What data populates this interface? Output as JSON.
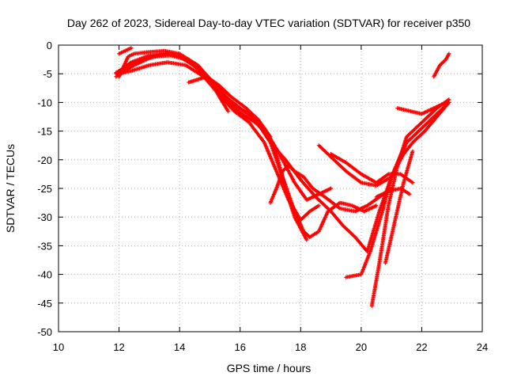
{
  "chart_data": {
    "type": "scatter",
    "title": "Day 262 of 2023, Sidereal Day-to-day VTEC variation (SDTVAR) for receiver p350",
    "xlabel": "GPS time / hours",
    "ylabel": "SDTVAR / TECUs",
    "xlim": [
      10,
      24
    ],
    "ylim": [
      -50,
      0
    ],
    "xticks": [
      10,
      12,
      14,
      16,
      18,
      20,
      22,
      24
    ],
    "yticks": [
      0,
      -5,
      -10,
      -15,
      -20,
      -25,
      -30,
      -35,
      -40,
      -45,
      -50
    ],
    "grid": true,
    "legend": "none",
    "marker": "plus",
    "color": "#ff0000",
    "series": [
      {
        "x": [
          11.9,
          12.4,
          13.0,
          13.5,
          14.0,
          14.6,
          15.2,
          15.8,
          16.3,
          16.8,
          17.3,
          17.8,
          18.2,
          18.6,
          19.0
        ],
        "y": [
          -5.0,
          -3.0,
          -1.8,
          -1.5,
          -1.8,
          -3.5,
          -7.0,
          -10.5,
          -12.0,
          -14.5,
          -19.0,
          -24.0,
          -27.0,
          -26.0,
          -25.0
        ]
      },
      {
        "x": [
          11.9,
          12.5,
          13.1,
          13.6,
          14.0,
          14.6,
          15.2,
          15.8,
          16.3,
          16.8,
          17.2,
          17.6,
          18.0,
          18.3,
          18.6
        ],
        "y": [
          -5.5,
          -3.5,
          -2.0,
          -1.5,
          -2.0,
          -4.0,
          -8.0,
          -11.5,
          -13.5,
          -17.0,
          -22.0,
          -27.0,
          -30.5,
          -29.0,
          -28.0
        ]
      },
      {
        "x": [
          11.9,
          12.5,
          13.2,
          13.7,
          14.2,
          14.8,
          15.4,
          16.0,
          16.5,
          17.0,
          17.4,
          17.8,
          18.1,
          18.3,
          18.6,
          18.9,
          19.3,
          19.7,
          20.1,
          20.5
        ],
        "y": [
          -4.8,
          -3.0,
          -2.0,
          -1.8,
          -2.5,
          -5.0,
          -8.5,
          -11.0,
          -13.0,
          -17.0,
          -23.0,
          -29.0,
          -32.5,
          -33.5,
          -32.5,
          -29.0,
          -27.5,
          -28.0,
          -29.0,
          -28.0
        ]
      },
      {
        "x": [
          12.0,
          12.3,
          12.5,
          13.0,
          13.5,
          14.0,
          14.6,
          15.2,
          15.8,
          16.2,
          16.5,
          16.9,
          17.2,
          17.5,
          17.8,
          18.2
        ],
        "y": [
          -5.5,
          -2.0,
          -1.5,
          -1.2,
          -1.0,
          -1.5,
          -3.5,
          -7.5,
          -11.0,
          -12.5,
          -13.5,
          -15.5,
          -19.0,
          -25.0,
          -30.0,
          -34.0
        ]
      },
      {
        "x": [
          12.0,
          12.4,
          13.0,
          13.6,
          14.2,
          14.8,
          15.2,
          15.6
        ],
        "y": [
          -5.0,
          -4.5,
          -3.5,
          -3.0,
          -3.5,
          -5.5,
          -8.0,
          -11.5
        ]
      },
      {
        "x": [
          14.3,
          14.6,
          14.9,
          15.3,
          15.7,
          16.2,
          16.6,
          17.0
        ],
        "y": [
          -6.5,
          -6.0,
          -5.5,
          -7.0,
          -9.0,
          -11.0,
          -13.0,
          -16.0
        ]
      },
      {
        "x": [
          12.0,
          12.2,
          12.4
        ],
        "y": [
          -1.5,
          -1.0,
          -0.5
        ]
      },
      {
        "x": [
          17.0,
          17.2,
          17.4,
          17.6,
          17.8,
          18.1,
          18.4,
          18.8,
          19.3,
          19.8,
          20.2,
          20.6,
          21.0
        ],
        "y": [
          -27.5,
          -25.0,
          -22.0,
          -21.0,
          -22.0,
          -23.0,
          -25.0,
          -26.5,
          -28.5,
          -29.0,
          -28.0,
          -26.5,
          -25.0
        ]
      },
      {
        "x": [
          17.0,
          17.5,
          18.0,
          18.5,
          19.0,
          19.4,
          19.8,
          20.2,
          20.6,
          21.0,
          21.4
        ],
        "y": [
          -17.0,
          -20.0,
          -23.5,
          -26.5,
          -29.0,
          -31.5,
          -33.5,
          -36.0,
          -29.0,
          -23.0,
          -18.0
        ]
      },
      {
        "x": [
          18.6,
          19.0,
          19.5,
          20.0,
          20.5,
          21.0,
          21.5,
          22.0,
          22.5,
          22.9
        ],
        "y": [
          -17.5,
          -19.5,
          -22.0,
          -24.0,
          -24.5,
          -23.0,
          -17.0,
          -14.5,
          -12.0,
          -10.0
        ]
      },
      {
        "x": [
          19.0,
          19.5,
          20.0,
          20.5,
          20.9,
          21.3,
          21.7
        ],
        "y": [
          -19.0,
          -20.5,
          -22.5,
          -24.0,
          -22.5,
          -22.5,
          -24.0
        ]
      },
      {
        "x": [
          19.5,
          20.0,
          20.3,
          20.7,
          21.0,
          21.4,
          21.7,
          22.1,
          22.5,
          22.9
        ],
        "y": [
          -40.5,
          -40.0,
          -36.0,
          -29.0,
          -23.0,
          -19.0,
          -17.0,
          -15.0,
          -12.5,
          -10.0
        ]
      },
      {
        "x": [
          20.35,
          20.6,
          20.9,
          21.2,
          21.5,
          21.8,
          22.1,
          22.5,
          22.9
        ],
        "y": [
          -45.5,
          -38.0,
          -28.0,
          -21.0,
          -16.0,
          -14.5,
          -13.0,
          -11.0,
          -9.5
        ]
      },
      {
        "x": [
          20.8,
          21.1,
          21.4,
          21.7
        ],
        "y": [
          -38.0,
          -31.0,
          -24.0,
          -18.5
        ]
      },
      {
        "x": [
          21.2,
          21.6,
          22.0,
          22.4,
          22.8
        ],
        "y": [
          -11.0,
          -11.5,
          -12.0,
          -11.0,
          -10.0
        ]
      },
      {
        "x": [
          20.5,
          20.9,
          21.3,
          21.6
        ],
        "y": [
          -26.5,
          -25.5,
          -25.0,
          -26.0
        ]
      },
      {
        "x": [
          22.4,
          22.6,
          22.8,
          22.9
        ],
        "y": [
          -5.5,
          -3.5,
          -2.5,
          -1.5
        ]
      }
    ]
  }
}
